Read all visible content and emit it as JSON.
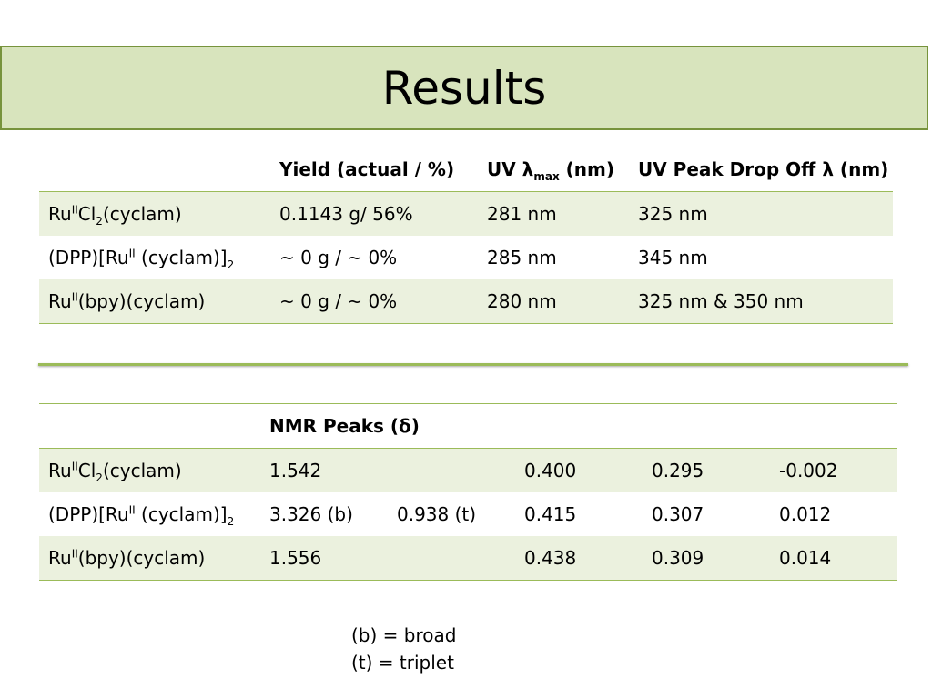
{
  "title": "Results",
  "table1": {
    "headers": {
      "yield": "Yield (actual / %)",
      "uv_prefix": "UV λ",
      "uv_sub": "max",
      "uv_suffix": " (nm)",
      "dropoff": "UV Peak Drop Off λ (nm)"
    },
    "rows": [
      {
        "yield": "0.1143 g/ 56%",
        "uvmax": "281 nm",
        "dropoff": "325 nm"
      },
      {
        "yield": "~ 0 g / ~ 0%",
        "uvmax": "285 nm",
        "dropoff": "345 nm"
      },
      {
        "yield": "~ 0 g / ~ 0%",
        "uvmax": "280 nm",
        "dropoff": "325 nm & 350 nm"
      }
    ]
  },
  "compounds": {
    "c1": {
      "a": "Ru",
      "sup": "II",
      "b": "Cl",
      "sub": "2",
      "c": "(cyclam)"
    },
    "c2": {
      "a": "(DPP)[Ru",
      "sup": "II",
      "b": " (cyclam)]",
      "sub": "2"
    },
    "c3": {
      "a": "Ru",
      "sup": "II",
      "b": "(bpy)(cyclam)"
    }
  },
  "table2": {
    "header": "NMR Peaks (δ)",
    "rows": [
      {
        "p1": "1.542",
        "p2": "",
        "p3": "0.400",
        "p4": "0.295",
        "p5": "-0.002"
      },
      {
        "p1": "3.326 (b)",
        "p2": "0.938 (t)",
        "p3": "0.415",
        "p4": "0.307",
        "p5": "0.012"
      },
      {
        "p1": "1.556",
        "p2": "",
        "p3": "0.438",
        "p4": "0.309",
        "p5": "0.014"
      }
    ]
  },
  "legend": {
    "broad": "(b) = broad",
    "triplet": "(t) = triplet"
  },
  "colors": {
    "title_fill": "#d8e4bd",
    "title_border": "#77933c",
    "row_band": "#ebf1de",
    "rule": "#9bbb59"
  }
}
